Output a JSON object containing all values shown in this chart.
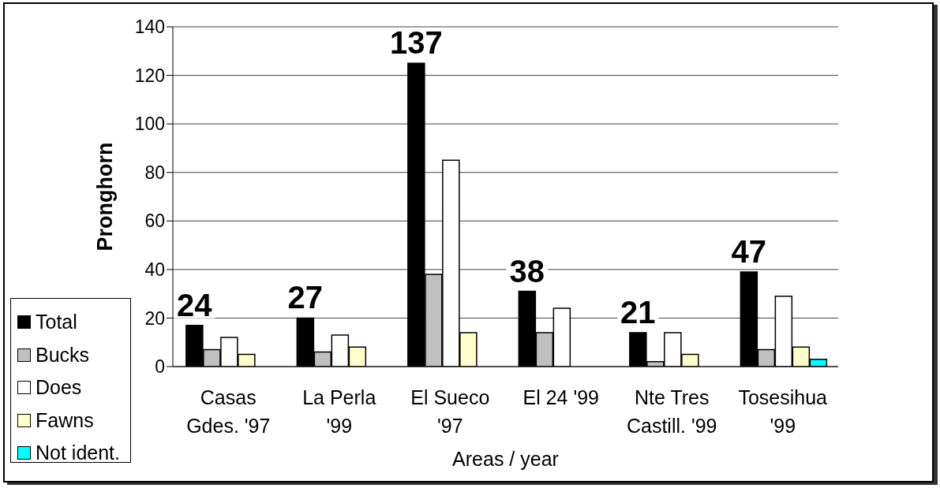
{
  "chart_data": {
    "type": "bar",
    "xlabel": "Areas / year",
    "ylabel": "Pronghorn",
    "categories": [
      "Casas Gdes. '97",
      "La Perla '99",
      "El Sueco '97",
      "El 24 '99",
      "Nte Tres Castill. '99",
      "Tosesihua '99"
    ],
    "series": [
      {
        "name": "Total",
        "color": "#000000",
        "values": [
          17,
          20,
          125,
          31,
          14,
          39
        ]
      },
      {
        "name": "Bucks",
        "color": "#c0c0c0",
        "values": [
          7,
          6,
          38,
          14,
          2,
          7
        ]
      },
      {
        "name": "Does",
        "color": "#ffffff",
        "values": [
          12,
          13,
          85,
          24,
          14,
          29
        ]
      },
      {
        "name": "Fawns",
        "color": "#ffffcc",
        "values": [
          5,
          8,
          14,
          0,
          5,
          8
        ]
      },
      {
        "name": "Not ident.",
        "color": "#00ffff",
        "values": [
          0,
          0,
          0,
          0,
          0,
          3
        ]
      }
    ],
    "annotations": [
      "24",
      "27",
      "137",
      "38",
      "21",
      "47"
    ],
    "ylim": [
      0,
      140
    ],
    "yticks": [
      0,
      20,
      40,
      60,
      80,
      100,
      120,
      140
    ],
    "grid": "y",
    "legend": "bottom left"
  }
}
